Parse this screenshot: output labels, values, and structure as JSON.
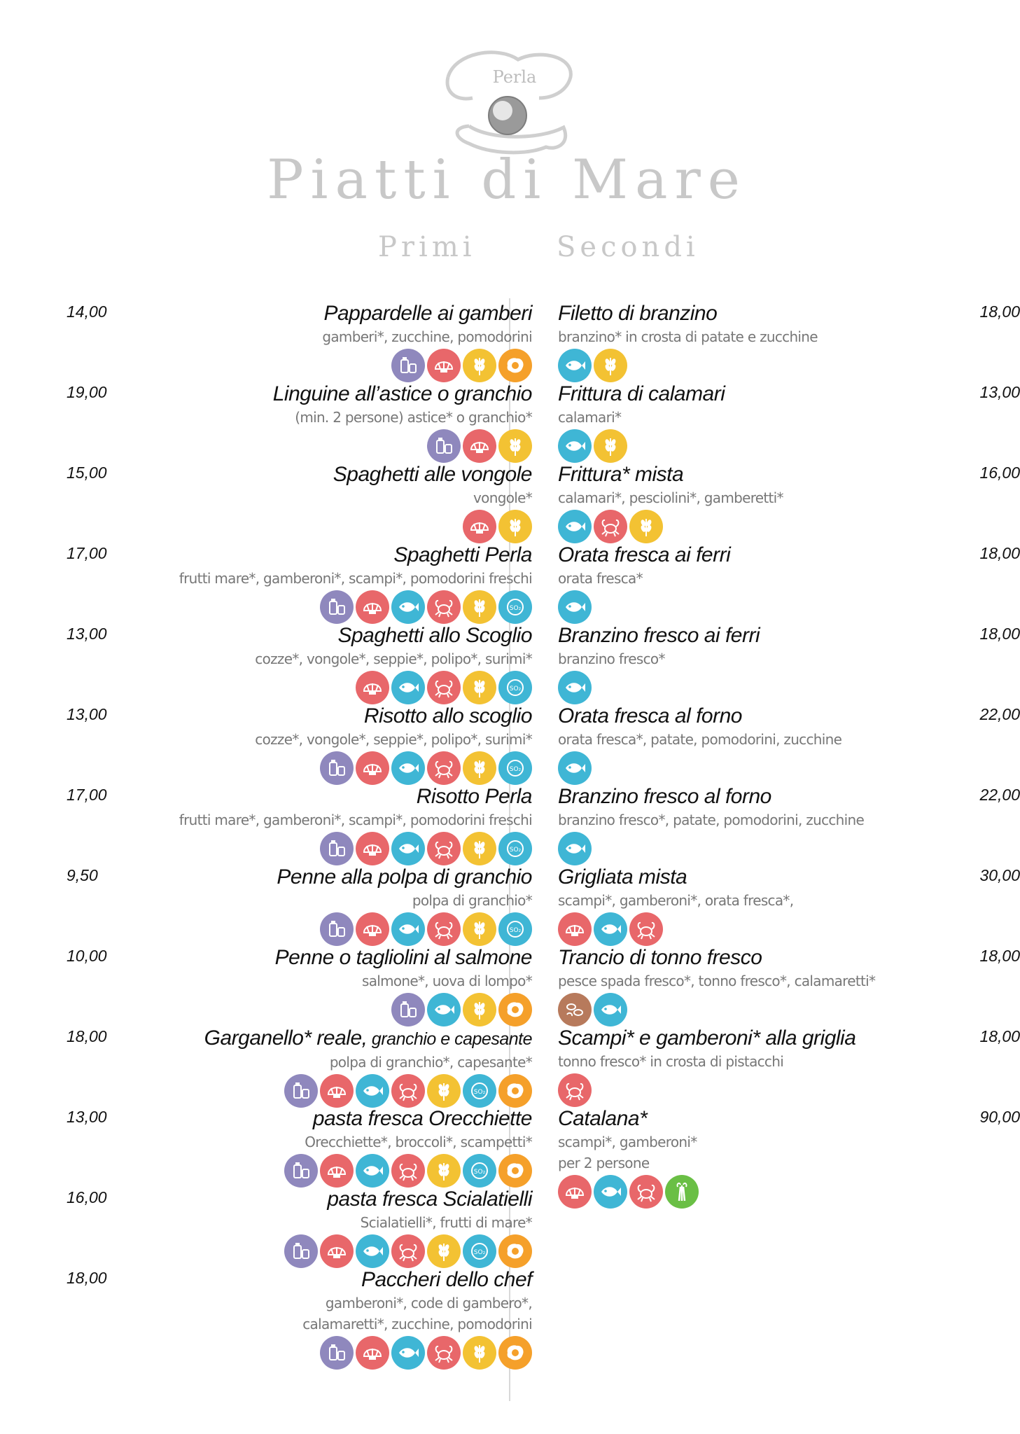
{
  "header": {
    "logo_text": "Perla",
    "title": "Piatti di Mare",
    "primi": "Primi",
    "secondi": "Secondi"
  },
  "colors": {
    "milk": "#8f88bd",
    "shell": "#e8676a",
    "fish": "#3fb6d5",
    "crab": "#e8676a",
    "gluten": "#f3c233",
    "so2": "#3fb6d5",
    "egg": "#f5a02a",
    "nuts": "#b77a5c",
    "celery": "#6abf45"
  },
  "primi": [
    {
      "price": "14,00",
      "name": "Pappardelle ai gamberi",
      "name_small": "",
      "desc": [
        "gamberi*, zucchine, pomodorini"
      ],
      "icons": [
        "milk-icon",
        "shell-icon",
        "gluten-icon",
        "egg-icon"
      ]
    },
    {
      "price": "19,00",
      "name": "Linguine all’astice o granchio",
      "name_small": "",
      "desc": [
        "(min. 2 persone) astice* o granchio*"
      ],
      "icons": [
        "milk-icon",
        "shell-icon",
        "gluten-icon"
      ]
    },
    {
      "price": "15,00",
      "name": "Spaghetti alle vongole",
      "name_small": "",
      "desc": [
        "vongole*"
      ],
      "icons": [
        "shell-icon",
        "gluten-icon"
      ]
    },
    {
      "price": "17,00",
      "name": "Spaghetti Perla",
      "name_small": "",
      "desc": [
        "frutti mare*, gamberoni*, scampi*, pomodorini freschi"
      ],
      "icons": [
        "milk-icon",
        "shell-icon",
        "fish-icon",
        "crab-icon",
        "gluten-icon",
        "so2-icon"
      ]
    },
    {
      "price": "13,00",
      "name": "Spaghetti allo Scoglio",
      "name_small": "",
      "desc": [
        "cozze*, vongole*, seppie*, polipo*, surimi*"
      ],
      "icons": [
        "shell-icon",
        "fish-icon",
        "crab-icon",
        "gluten-icon",
        "so2-icon"
      ]
    },
    {
      "price": "13,00",
      "name": "Risotto allo scoglio",
      "name_small": "",
      "desc": [
        "cozze*, vongole*, seppie*, polipo*, surimi*"
      ],
      "icons": [
        "milk-icon",
        "shell-icon",
        "fish-icon",
        "crab-icon",
        "gluten-icon",
        "so2-icon"
      ]
    },
    {
      "price": "17,00",
      "name": "Risotto Perla",
      "name_small": "",
      "desc": [
        "frutti mare*, gamberoni*, scampi*, pomodorini freschi"
      ],
      "icons": [
        "milk-icon",
        "shell-icon",
        "fish-icon",
        "crab-icon",
        "gluten-icon",
        "so2-icon"
      ]
    },
    {
      "price": "9,50",
      "name": "Penne alla polpa di granchio",
      "name_small": "",
      "desc": [
        "polpa di granchio*"
      ],
      "icons": [
        "milk-icon",
        "shell-icon",
        "fish-icon",
        "crab-icon",
        "gluten-icon",
        "so2-icon"
      ]
    },
    {
      "price": "10,00",
      "name": "Penne o tagliolini al salmone",
      "name_small": "",
      "desc": [
        "salmone*, uova di lompo*"
      ],
      "icons": [
        "milk-icon",
        "fish-icon",
        "gluten-icon",
        "egg-icon"
      ]
    },
    {
      "price": "18,00",
      "name": "Garganello* reale,",
      "name_small": " granchio e capesante",
      "desc": [
        "polpa di granchio*, capesante*"
      ],
      "icons": [
        "milk-icon",
        "shell-icon",
        "fish-icon",
        "crab-icon",
        "gluten-icon",
        "so2-icon",
        "egg-icon"
      ]
    },
    {
      "price": "13,00",
      "name": "pasta fresca Orecchiette",
      "name_small": "",
      "desc": [
        "Orecchiette*, broccoli*, scampetti*"
      ],
      "icons": [
        "milk-icon",
        "shell-icon",
        "fish-icon",
        "crab-icon",
        "gluten-icon",
        "so2-icon",
        "egg-icon"
      ]
    },
    {
      "price": "16,00",
      "name": "pasta fresca  Scialatielli",
      "name_small": "",
      "desc": [
        "Scialatielli*, frutti di mare*"
      ],
      "icons": [
        "milk-icon",
        "shell-icon",
        "fish-icon",
        "crab-icon",
        "gluten-icon",
        "so2-icon",
        "egg-icon"
      ]
    },
    {
      "price": "18,00",
      "name": "Paccheri dello chef",
      "name_small": "",
      "desc": [
        "gamberoni*, code di gambero*,",
        "calamaretti*, zucchine, pomodorini"
      ],
      "icons": [
        "milk-icon",
        "shell-icon",
        "fish-icon",
        "crab-icon",
        "gluten-icon",
        "egg-icon"
      ]
    }
  ],
  "secondi": [
    {
      "price": "18,00",
      "name": "Filetto di branzino",
      "desc": [
        "branzino* in crosta di patate e zucchine"
      ],
      "icons": [
        "fish-icon",
        "gluten-icon"
      ]
    },
    {
      "price": "13,00",
      "name": "Frittura di calamari",
      "desc": [
        "calamari*"
      ],
      "icons": [
        "fish-icon",
        "gluten-icon"
      ]
    },
    {
      "price": "16,00",
      "name": "Frittura* mista",
      "desc": [
        "calamari*, pesciolini*, gamberetti*"
      ],
      "icons": [
        "fish-icon",
        "crab-icon",
        "gluten-icon"
      ]
    },
    {
      "price": "18,00",
      "name": "Orata fresca ai ferri",
      "desc": [
        "orata fresca*"
      ],
      "icons": [
        "fish-icon"
      ]
    },
    {
      "price": "18,00",
      "name": "Branzino fresco ai ferri",
      "desc": [
        "branzino fresco*"
      ],
      "icons": [
        "fish-icon"
      ]
    },
    {
      "price": "22,00",
      "name": "Orata fresca al forno",
      "desc": [
        "orata fresca*, patate, pomodorini, zucchine"
      ],
      "icons": [
        "fish-icon"
      ]
    },
    {
      "price": "22,00",
      "name": "Branzino fresco al forno",
      "desc": [
        "branzino fresco*, patate, pomodorini, zucchine"
      ],
      "icons": [
        "fish-icon"
      ]
    },
    {
      "price": "30,00",
      "name": "Grigliata mista",
      "desc": [
        "scampi*, gamberoni*, orata fresca*,"
      ],
      "icons": [
        "shell-icon",
        "fish-icon",
        "crab-icon"
      ]
    },
    {
      "price": "18,00",
      "name": "Trancio di tonno fresco",
      "desc": [
        "pesce spada fresco*, tonno fresco*, calamaretti*"
      ],
      "icons": [
        "nuts-icon",
        "fish-icon"
      ]
    },
    {
      "price": "18,00",
      "name": "Scampi* e gamberoni* alla griglia",
      "desc": [
        "tonno fresco* in crosta di pistacchi"
      ],
      "icons": [
        "crab-icon"
      ]
    },
    {
      "price": "90,00",
      "name": "Catalana*",
      "desc": [
        "scampi*, gamberoni*",
        "per 2 persone"
      ],
      "icons": [
        "shell-icon",
        "fish-icon",
        "crab-icon",
        "celery-icon"
      ]
    }
  ]
}
